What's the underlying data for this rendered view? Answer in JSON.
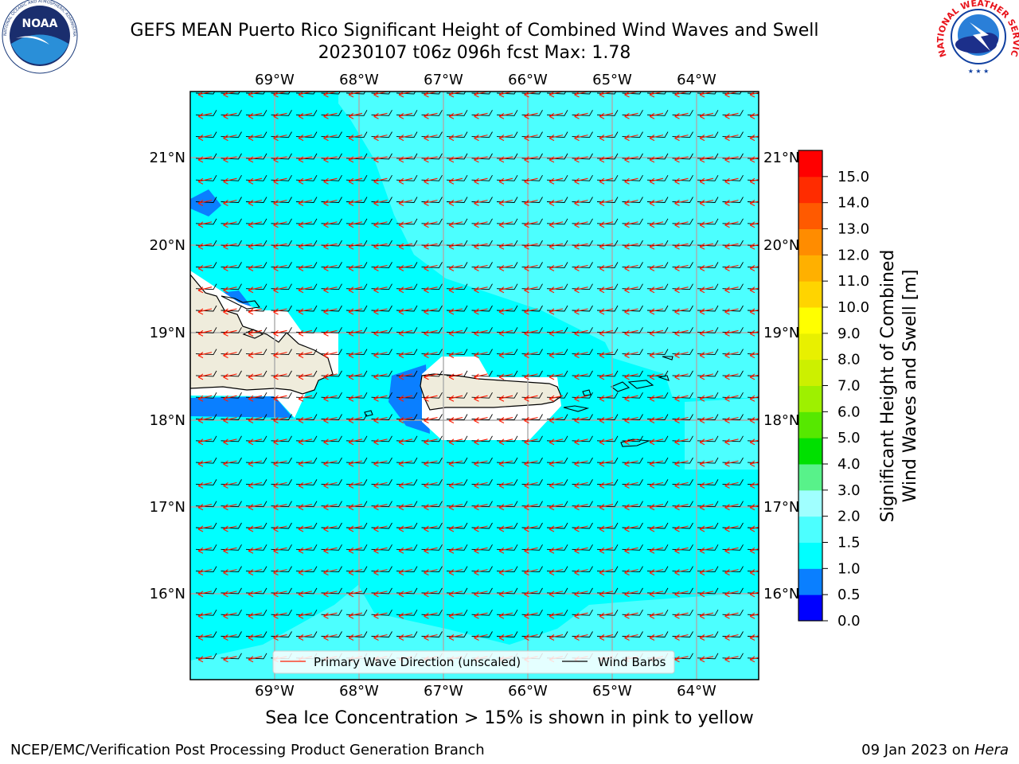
{
  "header": {
    "title_line1": "GEFS MEAN Puerto Rico Significant Height of Combined Wind Waves and Swell",
    "title_line2": "20230107 t06z 096h fcst   Max: 1.78"
  },
  "logos": {
    "left": {
      "name": "noaa-logo",
      "text": "NOAA",
      "ring_text": "NATIONAL OCEANIC AND ATMOSPHERIC ADMINISTRATION · U.S. DEPARTMENT OF COMMERCE"
    },
    "right": {
      "name": "nws-logo",
      "ring_text": "NATIONAL WEATHER SERVICE"
    }
  },
  "map": {
    "lon_labels": [
      "69°W",
      "68°W",
      "67°W",
      "66°W",
      "65°W",
      "64°W"
    ],
    "lat_labels": [
      "21°N",
      "20°N",
      "19°N",
      "18°N",
      "17°N",
      "16°N"
    ],
    "legend": {
      "primary_wave": "Primary Wave Direction (unscaled)",
      "wind_barbs": "Wind Barbs"
    },
    "colors": {
      "ocean_main": "#00ffff",
      "ocean_light": "#4cffff",
      "ocean_patch": "#0a7fff",
      "land": "#efecdc",
      "wave_arrow": "#ff1a00",
      "barb": "#000000"
    }
  },
  "colorbar": {
    "label_line1": "Significant Height of Combined",
    "label_line2": "Wind Waves and Swell [m]",
    "ticks": [
      "0.0",
      "0.5",
      "1.0",
      "1.5",
      "2.0",
      "3.0",
      "4.0",
      "5.0",
      "6.0",
      "7.0",
      "8.0",
      "9.0",
      "10.0",
      "11.0",
      "12.0",
      "13.0",
      "14.0",
      "15.0"
    ],
    "colors": [
      "#0000ff",
      "#0a7fff",
      "#00ffff",
      "#4cffff",
      "#a0ffff",
      "#58f28a",
      "#00e000",
      "#56e800",
      "#9ef000",
      "#ccf000",
      "#e8f000",
      "#ffff00",
      "#ffd400",
      "#ffb000",
      "#ff8c00",
      "#ff5a00",
      "#ff2c00",
      "#ff0000"
    ]
  },
  "subtitle": "Sea Ice Concentration > 15% is shown in pink to yellow",
  "footer": {
    "left": "NCEP/EMC/Verification Post Processing Product Generation Branch",
    "right_date": "09 Jan 2023 on ",
    "right_host": "Hera"
  }
}
